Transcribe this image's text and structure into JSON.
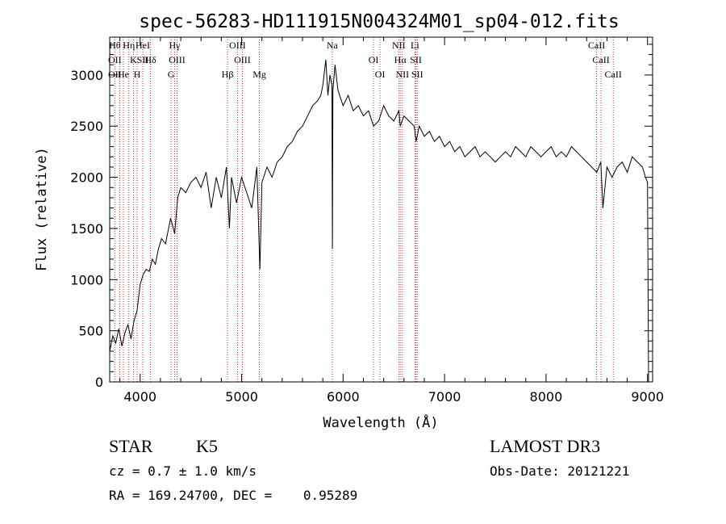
{
  "chart_data": {
    "type": "line",
    "title": "spec-56283-HD111915N004324M01_sp04-012.fits",
    "xlabel": "Wavelength (Å)",
    "ylabel": "Flux (relative)",
    "xlim": [
      3700,
      9050
    ],
    "ylim": [
      0,
      3370
    ],
    "xticks": [
      4000,
      5000,
      6000,
      7000,
      8000,
      9000
    ],
    "yticks": [
      0,
      500,
      1000,
      1500,
      2000,
      2500,
      3000
    ],
    "grid": false,
    "line_color": "#000000",
    "marker_line_color": "#cc0000",
    "series": [
      {
        "values_x": [
          3700,
          3730,
          3760,
          3790,
          3820,
          3850,
          3880,
          3910,
          3940,
          3970,
          4000,
          4030,
          4060,
          4090,
          4120,
          4150,
          4180,
          4210,
          4250,
          4300,
          4340,
          4370,
          4400,
          4450,
          4500,
          4550,
          4600,
          4650,
          4700,
          4750,
          4800,
          4850,
          4880,
          4900,
          4950,
          5000,
          5050,
          5100,
          5150,
          5180,
          5200,
          5250,
          5300,
          5350,
          5400,
          5450,
          5500,
          5550,
          5600,
          5650,
          5700,
          5750,
          5780,
          5800,
          5830,
          5850,
          5870,
          5890,
          5895,
          5900,
          5920,
          5950,
          6000,
          6050,
          6100,
          6150,
          6200,
          6250,
          6300,
          6350,
          6400,
          6450,
          6500,
          6550,
          6563,
          6600,
          6650,
          6700,
          6720,
          6750,
          6800,
          6850,
          6900,
          6950,
          7000,
          7050,
          7100,
          7150,
          7200,
          7250,
          7300,
          7350,
          7400,
          7450,
          7500,
          7550,
          7600,
          7650,
          7700,
          7750,
          7800,
          7850,
          7900,
          7950,
          8000,
          8050,
          8100,
          8150,
          8200,
          8250,
          8300,
          8350,
          8400,
          8450,
          8500,
          8540,
          8560,
          8600,
          8650,
          8700,
          8750,
          8800,
          8850,
          8900,
          8950,
          8980,
          9000,
          9010
        ],
        "values_y": [
          300,
          450,
          380,
          520,
          350,
          480,
          560,
          420,
          600,
          700,
          950,
          1050,
          1100,
          1080,
          1200,
          1150,
          1300,
          1400,
          1350,
          1600,
          1450,
          1800,
          1900,
          1850,
          1950,
          2000,
          1900,
          2050,
          1700,
          2000,
          1800,
          2100,
          1500,
          2000,
          1750,
          2000,
          1850,
          1700,
          2100,
          1100,
          1950,
          2100,
          2000,
          2150,
          2200,
          2300,
          2350,
          2450,
          2500,
          2600,
          2700,
          2750,
          2800,
          2900,
          3150,
          2800,
          3000,
          2900,
          1300,
          2850,
          3100,
          2850,
          2700,
          2800,
          2650,
          2700,
          2600,
          2650,
          2500,
          2550,
          2700,
          2600,
          2550,
          2650,
          2500,
          2600,
          2550,
          2500,
          2350,
          2500,
          2400,
          2450,
          2350,
          2400,
          2300,
          2350,
          2250,
          2300,
          2200,
          2250,
          2300,
          2200,
          2250,
          2200,
          2150,
          2200,
          2250,
          2200,
          2300,
          2250,
          2200,
          2300,
          2250,
          2200,
          2250,
          2300,
          2200,
          2250,
          2200,
          2300,
          2250,
          2200,
          2150,
          2100,
          2050,
          2150,
          1700,
          2100,
          2000,
          2100,
          2150,
          2050,
          2200,
          2150,
          2100,
          2000,
          1950,
          0
        ]
      }
    ],
    "line_markers": [
      {
        "x": 3750,
        "labels": [
          "Hθ",
          "OII",
          "OII"
        ]
      },
      {
        "x": 3800,
        "labels": []
      },
      {
        "x": 3835,
        "labels": [
          "He"
        ]
      },
      {
        "x": 3889,
        "labels": [
          "Hη"
        ]
      },
      {
        "x": 3934,
        "labels": [
          "K"
        ]
      },
      {
        "x": 3970,
        "labels": [
          "H"
        ]
      },
      {
        "x": 4026,
        "labels": [
          "HeI",
          "SII"
        ]
      },
      {
        "x": 4102,
        "labels": [
          "Hδ"
        ]
      },
      {
        "x": 4305,
        "labels": [
          "G"
        ]
      },
      {
        "x": 4340,
        "labels": [
          "Hγ"
        ]
      },
      {
        "x": 4363,
        "labels": [
          "OIII"
        ]
      },
      {
        "x": 4861,
        "labels": [
          "Hβ"
        ]
      },
      {
        "x": 4959,
        "labels": [
          "OIII"
        ]
      },
      {
        "x": 5007,
        "labels": [
          "OIII"
        ]
      },
      {
        "x": 5175,
        "labels": [
          "Mg"
        ]
      },
      {
        "x": 5893,
        "labels": [
          "Na"
        ]
      },
      {
        "x": 6300,
        "labels": [
          "OI"
        ]
      },
      {
        "x": 6364,
        "labels": [
          "OI"
        ]
      },
      {
        "x": 6548,
        "labels": [
          "NII"
        ]
      },
      {
        "x": 6563,
        "labels": [
          "Hα"
        ]
      },
      {
        "x": 6584,
        "labels": [
          "NII"
        ]
      },
      {
        "x": 6708,
        "labels": [
          "Li"
        ]
      },
      {
        "x": 6717,
        "labels": [
          "SII"
        ]
      },
      {
        "x": 6731,
        "labels": [
          "SII"
        ]
      },
      {
        "x": 8498,
        "labels": [
          "CaII"
        ]
      },
      {
        "x": 8542,
        "labels": [
          "CaII"
        ]
      },
      {
        "x": 8662,
        "labels": [
          "CaII"
        ]
      }
    ],
    "info": {
      "class": "STAR",
      "subclass": "K5",
      "cz": "cz = 0.7 ± 1.0 km/s",
      "coords": "RA = 169.24700, DEC =    0.95289",
      "survey": "LAMOST DR3",
      "obsdate": "Obs-Date: 20121221"
    }
  }
}
